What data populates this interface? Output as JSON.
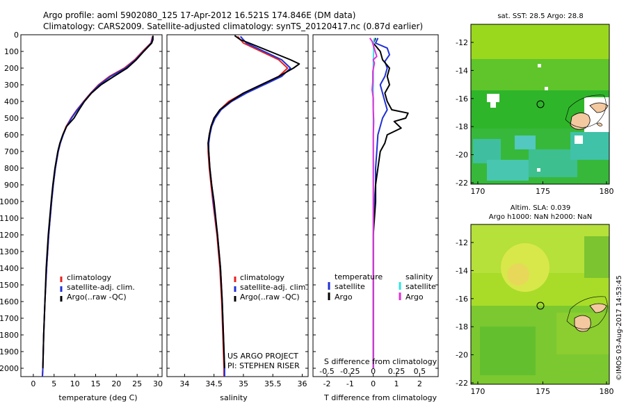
{
  "title": {
    "line1": "Argo profile: aoml 5902080_125 17-Apr-2012 16.521S 174.846E (DM data)",
    "line2": "Climatology: CARS2009. Satellite-adjusted climatology: synTS_20120417.nc (0.87d earlier)"
  },
  "project_note": {
    "line1": "US ARGO PROJECT",
    "line2": "PI: STEPHEN RISER"
  },
  "map_sst": {
    "title": "sat. SST: 28.5 Argo: 28.8",
    "x_ticks": [
      "170",
      "175",
      "180"
    ],
    "y_ticks": [
      "-12",
      "-14",
      "-16",
      "-18",
      "-20",
      "-22"
    ]
  },
  "map_sla": {
    "title1": "Altim. SLA: 0.039",
    "title2": "Argo h1000: NaN h2000: NaN",
    "x_ticks": [
      "170",
      "175",
      "180"
    ],
    "y_ticks": [
      "-12",
      "-14",
      "-16",
      "-18",
      "-20",
      "-22"
    ]
  },
  "stamp": "©IMOS 03-Aug-2017 14:53:45",
  "colors": {
    "climatology": "#e8201e",
    "satellite": "#1f2fd4",
    "argo": "#000000",
    "salinity_satellite": "#2fe3e3",
    "salinity_argo": "#e62bd9",
    "ocean_green": "#2fb52a",
    "warm_green": "#a5d61c",
    "land": "#f4c9a0"
  },
  "chart_data": [
    {
      "type": "line",
      "xlabel": "temperature (deg C)",
      "ylabel": "",
      "xlim": [
        -3,
        31
      ],
      "ylim": [
        2050,
        0
      ],
      "x_ticks": [
        "0",
        "5",
        "10",
        "15",
        "20",
        "25",
        "30"
      ],
      "y_ticks": [
        "0",
        "100",
        "200",
        "300",
        "400",
        "500",
        "600",
        "700",
        "800",
        "900",
        "1000",
        "1100",
        "1200",
        "1300",
        "1400",
        "1500",
        "1600",
        "1700",
        "1800",
        "1900",
        "2000"
      ],
      "legend": [
        "climatology",
        "satellite-adj. clim.",
        "Argo(..raw -QC)"
      ],
      "series": [
        {
          "name": "climatology",
          "depth": [
            10,
            50,
            100,
            150,
            200,
            250,
            300,
            350,
            400,
            450,
            500,
            550,
            600,
            650,
            700,
            800,
            900,
            1000,
            1200,
            1400,
            1600,
            1800,
            2000,
            2050
          ],
          "values": [
            28.7,
            28.3,
            26.3,
            24.4,
            21.9,
            18.3,
            15.7,
            13.8,
            12.1,
            10.5,
            9.1,
            7.9,
            7.1,
            6.5,
            6.0,
            5.3,
            4.8,
            4.4,
            3.7,
            3.2,
            2.8,
            2.5,
            2.3,
            2.2
          ]
        },
        {
          "name": "satellite-adj. clim.",
          "depth": [
            10,
            50,
            100,
            150,
            200,
            250,
            300,
            350,
            400,
            450,
            500,
            550,
            600,
            650,
            700,
            800,
            900,
            1000,
            1200,
            1400,
            1600,
            1800,
            2000,
            2050
          ],
          "values": [
            28.8,
            28.4,
            26.5,
            24.6,
            22.2,
            18.6,
            15.9,
            13.9,
            12.2,
            10.6,
            9.2,
            8.0,
            7.2,
            6.5,
            6.0,
            5.3,
            4.8,
            4.4,
            3.7,
            3.2,
            2.8,
            2.5,
            2.3,
            2.2
          ]
        },
        {
          "name": "Argo(..raw -QC)",
          "depth": [
            5,
            30,
            50,
            100,
            150,
            200,
            250,
            300,
            350,
            400,
            450,
            500,
            550,
            600,
            650,
            700,
            800,
            900,
            1000,
            1200,
            1400,
            1600,
            1800,
            2000
          ],
          "values": [
            28.8,
            28.8,
            28.5,
            26.6,
            24.8,
            22.6,
            19.4,
            16.3,
            14.0,
            12.3,
            11.0,
            9.8,
            8.0,
            7.1,
            6.4,
            5.9,
            5.2,
            4.7,
            4.3,
            3.6,
            3.1,
            2.8,
            2.5,
            2.3
          ]
        }
      ]
    },
    {
      "type": "line",
      "xlabel": "salinity",
      "ylabel": "",
      "xlim": [
        33.7,
        36.1
      ],
      "ylim": [
        2050,
        0
      ],
      "x_ticks": [
        "34",
        "34.5",
        "35",
        "35.5",
        "36"
      ],
      "legend": [
        "climatology",
        "satellite-adj. clim.",
        "Argo(..raw -QC)"
      ],
      "series": [
        {
          "name": "climatology",
          "depth": [
            10,
            50,
            100,
            150,
            200,
            250,
            300,
            350,
            400,
            450,
            500,
            550,
            600,
            650,
            700,
            800,
            900,
            1000,
            1200,
            1400,
            1600,
            1800,
            2000,
            2050
          ],
          "values": [
            34.9,
            35.0,
            35.3,
            35.6,
            35.75,
            35.6,
            35.3,
            35.0,
            34.75,
            34.6,
            34.5,
            34.45,
            34.42,
            34.4,
            34.4,
            34.42,
            34.45,
            34.48,
            34.55,
            34.6,
            34.63,
            34.65,
            34.67,
            34.67
          ]
        },
        {
          "name": "satellite-adj. clim.",
          "depth": [
            10,
            50,
            100,
            150,
            200,
            250,
            300,
            350,
            400,
            450,
            500,
            550,
            600,
            650,
            700,
            800,
            900,
            1000,
            1200,
            1400,
            1600,
            1800,
            2000,
            2050
          ],
          "values": [
            34.95,
            35.05,
            35.35,
            35.65,
            35.8,
            35.65,
            35.35,
            35.05,
            34.8,
            34.62,
            34.52,
            34.46,
            34.43,
            34.41,
            34.41,
            34.43,
            34.46,
            34.49,
            34.56,
            34.61,
            34.64,
            34.66,
            34.68,
            34.68
          ]
        },
        {
          "name": "Argo(..raw -QC)",
          "depth": [
            5,
            30,
            50,
            100,
            150,
            175,
            200,
            250,
            300,
            350,
            400,
            450,
            500,
            550,
            600,
            650,
            700,
            800,
            900,
            1000,
            1200,
            1400,
            1600,
            1800,
            2000
          ],
          "values": [
            34.85,
            34.95,
            35.1,
            35.45,
            35.8,
            35.95,
            35.85,
            35.6,
            35.3,
            35.0,
            34.78,
            34.6,
            34.5,
            34.45,
            34.42,
            34.4,
            34.41,
            34.43,
            34.46,
            34.5,
            34.56,
            34.61,
            34.64,
            34.66,
            34.68
          ]
        }
      ]
    },
    {
      "type": "line",
      "xlabel": "T difference from climatology",
      "xlabel2": "S difference from climatology",
      "xlim": [
        -2.6,
        2.8
      ],
      "ylim": [
        2050,
        0
      ],
      "x_ticks": [
        "-2",
        "-1",
        "0",
        "1",
        "2"
      ],
      "x_ticks_top": [
        "-0.5",
        "-0.25",
        "0",
        "0.25",
        "0.5"
      ],
      "legend_headers": [
        "temperature",
        "salinity"
      ],
      "legend": [
        "satellite",
        "Argo",
        "satellite",
        "Argo"
      ],
      "series": [
        {
          "name": "satellite",
          "group": "temperature",
          "depth": [
            20,
            50,
            80,
            120,
            160,
            200,
            250,
            300,
            350,
            400,
            450,
            500,
            600,
            700,
            800,
            900,
            1000,
            1200,
            1500,
            2000
          ],
          "values": [
            0.2,
            0.1,
            0.6,
            0.7,
            0.5,
            0.6,
            0.5,
            0.3,
            0.4,
            0.5,
            0.6,
            0.4,
            0.2,
            0.15,
            0.1,
            0.1,
            0.05,
            0.0,
            0.0,
            0.0
          ]
        },
        {
          "name": "Argo",
          "group": "temperature",
          "depth": [
            20,
            50,
            100,
            150,
            200,
            250,
            300,
            350,
            400,
            450,
            470,
            500,
            520,
            560,
            600,
            650,
            700,
            800,
            900,
            1000,
            1200,
            1500,
            2000
          ],
          "values": [
            0.1,
            0.0,
            0.3,
            0.4,
            0.7,
            0.6,
            0.7,
            0.5,
            0.6,
            0.8,
            1.5,
            1.4,
            0.9,
            1.2,
            0.6,
            0.5,
            0.3,
            0.2,
            0.1,
            0.1,
            0.0,
            0.0,
            0.0
          ]
        },
        {
          "name": "satellite",
          "group": "salinity",
          "depth": [
            20,
            50,
            100,
            150,
            200,
            300,
            400,
            500,
            600,
            700,
            800,
            1000,
            1500,
            2000
          ],
          "values": [
            0.05,
            0.0,
            0.02,
            0.0,
            0.0,
            0.0,
            -0.01,
            0.0,
            0.0,
            0.0,
            0.0,
            0.0,
            0.0,
            0.0
          ]
        },
        {
          "name": "Argo",
          "group": "salinity",
          "depth": [
            20,
            40,
            130,
            150,
            170,
            220,
            280,
            330,
            380,
            450,
            520,
            600,
            700,
            800,
            1000,
            1500,
            2000
          ],
          "values": [
            -0.15,
            -0.05,
            0.15,
            0.0,
            0.05,
            -0.02,
            -0.02,
            -0.05,
            0.0,
            0.0,
            0.02,
            0.0,
            0.0,
            0.0,
            0.0,
            0.0,
            0.0
          ]
        }
      ]
    }
  ]
}
